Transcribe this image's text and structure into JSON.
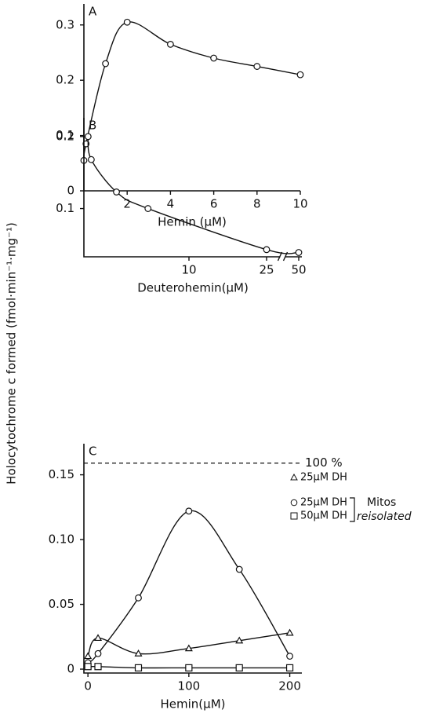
{
  "chart_data": [
    {
      "type": "line",
      "panel": "A",
      "xlabel": "Hemin (μM)",
      "xlim": [
        0,
        10
      ],
      "xticks": [
        2,
        4,
        6,
        8,
        10
      ],
      "ylim": [
        0,
        0.338
      ],
      "yticks": [
        0,
        0.1,
        0.2,
        0.3
      ],
      "series": [
        {
          "marker": "circle",
          "color": "#111111",
          "x": [
            0,
            0.1,
            1,
            2,
            4,
            6,
            8,
            10
          ],
          "values": [
            0.055,
            0.085,
            0.23,
            0.305,
            0.265,
            0.24,
            0.225,
            0.21
          ]
        }
      ]
    },
    {
      "type": "line",
      "panel": "B",
      "xlabel": "Deuterohemin(μM)",
      "ylabel": "Holocytochrome c formed (fmol·min⁻¹·mg⁻¹)",
      "xlim": [
        0,
        50
      ],
      "xticks": [
        10,
        25,
        50
      ],
      "xbreak": true,
      "ylim": [
        0.033,
        0.226
      ],
      "yticks": [
        0.1,
        0.2
      ],
      "series": [
        {
          "marker": "circle",
          "color": "#111111",
          "x": [
            0.4,
            0.7,
            3.1,
            6.1,
            25,
            50
          ],
          "values": [
            0.2,
            0.168,
            0.123,
            0.1,
            0.043,
            0.039
          ]
        }
      ]
    },
    {
      "type": "line",
      "panel": "C",
      "xlabel": "Hemin(μM)",
      "xlim": [
        -4,
        212
      ],
      "xticks": [
        0,
        100,
        200
      ],
      "ylim": [
        -0.003,
        0.174
      ],
      "yticks": [
        0,
        0.05,
        {
          "value": 0.1,
          "label": "0.10"
        },
        0.15
      ],
      "reference_line": {
        "value": 0.159,
        "label": "100 %"
      },
      "legend_note": [
        "Mitos",
        "reisolated"
      ],
      "series": [
        {
          "name": "25μM DH",
          "marker": "triangle",
          "color": "#111111",
          "x": [
            0,
            10,
            50,
            100,
            150,
            200
          ],
          "values": [
            0.01,
            0.024,
            0.012,
            0.016,
            0.022,
            0.028
          ]
        },
        {
          "name": "25μM DH",
          "marker": "circle",
          "color": "#111111",
          "x": [
            0,
            10,
            50,
            100,
            150,
            200
          ],
          "values": [
            0.005,
            0.012,
            0.055,
            0.122,
            0.077,
            0.01
          ]
        },
        {
          "name": "50μM DH",
          "marker": "square",
          "color": "#111111",
          "x": [
            0,
            10,
            50,
            100,
            150,
            200
          ],
          "values": [
            0.002,
            0.002,
            0.001,
            0.001,
            0.001,
            0.001
          ]
        }
      ]
    }
  ]
}
